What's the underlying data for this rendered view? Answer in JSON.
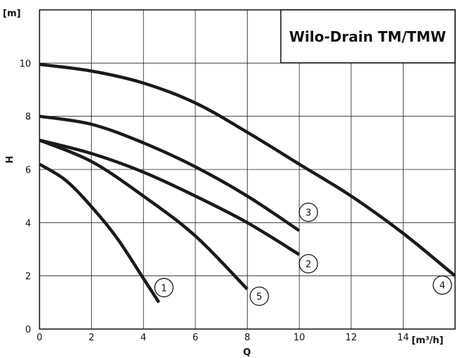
{
  "chart_data": {
    "type": "line",
    "title": "Wilo-Drain TM/TMW",
    "xlabel": "Q",
    "ylabel": "H",
    "x_unit": "[m³/h]",
    "y_unit": "[m]",
    "xlim": [
      0,
      16
    ],
    "ylim": [
      0,
      12
    ],
    "xticks": [
      "0",
      "2",
      "4",
      "6",
      "8",
      "10",
      "12",
      "14"
    ],
    "yticks": [
      "0",
      "2",
      "4",
      "6",
      "8",
      "10"
    ],
    "grid": true,
    "series": [
      {
        "name": "1",
        "x": [
          0,
          1,
          2,
          3,
          4,
          4.6
        ],
        "y": [
          6.2,
          5.6,
          4.6,
          3.4,
          1.9,
          1.0
        ]
      },
      {
        "name": "2",
        "x": [
          0,
          2,
          4,
          6,
          8,
          10
        ],
        "y": [
          7.1,
          6.6,
          5.9,
          5.0,
          4.0,
          2.8
        ]
      },
      {
        "name": "3",
        "x": [
          0,
          2,
          4,
          6,
          8,
          10
        ],
        "y": [
          8.0,
          7.7,
          7.0,
          6.1,
          5.0,
          3.7
        ]
      },
      {
        "name": "4",
        "x": [
          0,
          2,
          4,
          6,
          8,
          10,
          12,
          14,
          16
        ],
        "y": [
          9.95,
          9.7,
          9.25,
          8.5,
          7.4,
          6.2,
          5.0,
          3.6,
          2.0
        ]
      },
      {
        "name": "5",
        "x": [
          0,
          2,
          4,
          6,
          8
        ],
        "y": [
          7.1,
          6.3,
          5.0,
          3.5,
          1.5
        ]
      }
    ]
  }
}
